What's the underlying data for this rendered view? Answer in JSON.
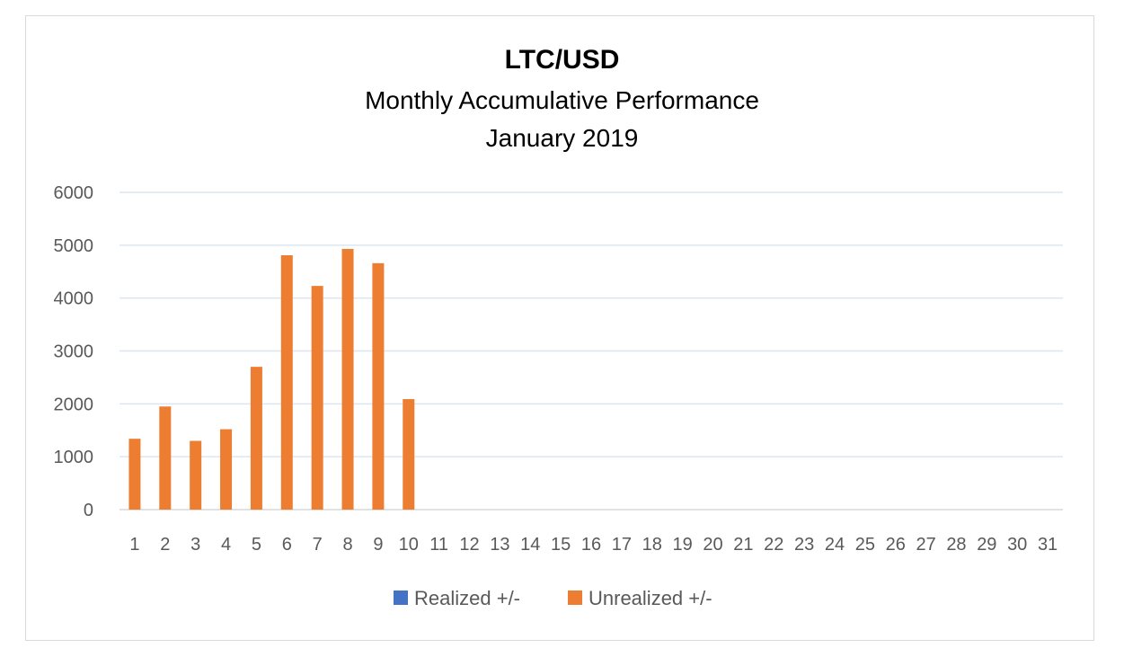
{
  "chart_data": {
    "type": "bar",
    "title": "LTC/USD",
    "subtitle": "Monthly Accumulative Performance",
    "period": "January 2019",
    "categories": [
      "1",
      "2",
      "3",
      "4",
      "5",
      "6",
      "7",
      "8",
      "9",
      "10",
      "11",
      "12",
      "13",
      "14",
      "15",
      "16",
      "17",
      "18",
      "19",
      "20",
      "21",
      "22",
      "23",
      "24",
      "25",
      "26",
      "27",
      "28",
      "29",
      "30",
      "31"
    ],
    "series": [
      {
        "name": "Realized +/-",
        "color": "#4472c4",
        "values": [
          0,
          0,
          0,
          0,
          0,
          0,
          0,
          0,
          0,
          0,
          null,
          null,
          null,
          null,
          null,
          null,
          null,
          null,
          null,
          null,
          null,
          null,
          null,
          null,
          null,
          null,
          null,
          null,
          null,
          null,
          null
        ]
      },
      {
        "name": "Unrealized +/-",
        "color": "#ed7d31",
        "values": [
          1340,
          1950,
          1300,
          1520,
          2700,
          4810,
          4230,
          4930,
          4660,
          2090,
          null,
          null,
          null,
          null,
          null,
          null,
          null,
          null,
          null,
          null,
          null,
          null,
          null,
          null,
          null,
          null,
          null,
          null,
          null,
          null,
          null
        ]
      }
    ],
    "yticks": [
      "0",
      "1000",
      "2000",
      "3000",
      "4000",
      "5000",
      "6000"
    ],
    "ylim": [
      0,
      6000
    ],
    "grid": true,
    "legend_position": "bottom"
  }
}
